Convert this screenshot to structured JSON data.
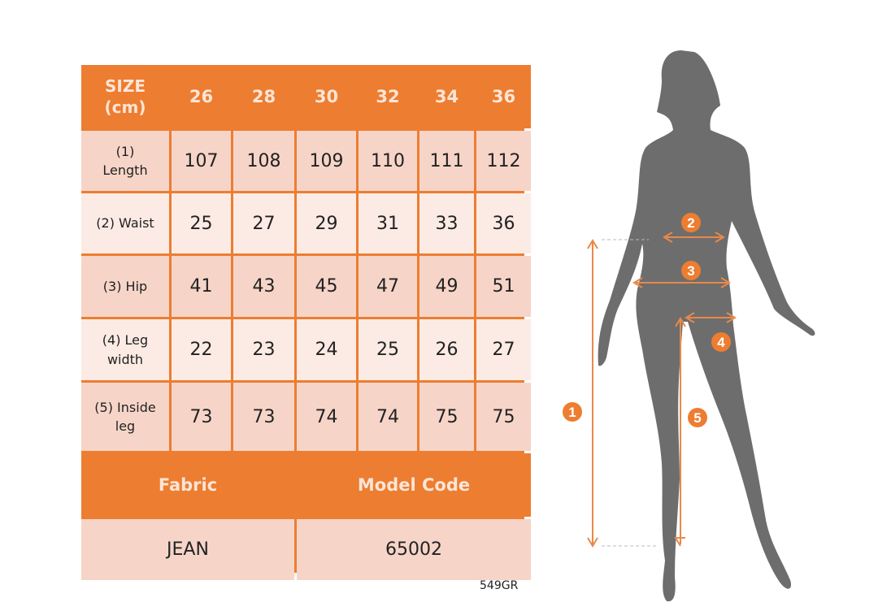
{
  "table": {
    "header_label": [
      "SIZE",
      "(cm)"
    ],
    "sizes": [
      "26",
      "28",
      "30",
      "32",
      "34",
      "36"
    ],
    "rows": [
      {
        "label": [
          "(1)",
          "Length"
        ],
        "values": [
          "107",
          "108",
          "109",
          "110",
          "111",
          "112"
        ]
      },
      {
        "label": [
          "(2) Waist"
        ],
        "values": [
          "25",
          "27",
          "29",
          "31",
          "33",
          "36"
        ]
      },
      {
        "label": [
          "(3) Hip"
        ],
        "values": [
          "41",
          "43",
          "45",
          "47",
          "49",
          "51"
        ]
      },
      {
        "label": [
          "(4) Leg",
          "width"
        ],
        "values": [
          "22",
          "23",
          "24",
          "25",
          "26",
          "27"
        ]
      },
      {
        "label": [
          "(5) Inside",
          "leg"
        ],
        "values": [
          "73",
          "73",
          "74",
          "74",
          "75",
          "75"
        ]
      }
    ],
    "footer": {
      "fabric_label": "Fabric",
      "model_code_label": "Model Code",
      "fabric_value": "JEAN",
      "model_code_value": "65002"
    }
  },
  "product_code": "549GR",
  "figure": {
    "markers": [
      "1",
      "2",
      "3",
      "4",
      "5"
    ]
  },
  "colors": {
    "accent": "#ed7d31",
    "row_dark": "#f6d5c8",
    "row_light": "#fbebe4",
    "silhouette": "#6d6d6d"
  }
}
